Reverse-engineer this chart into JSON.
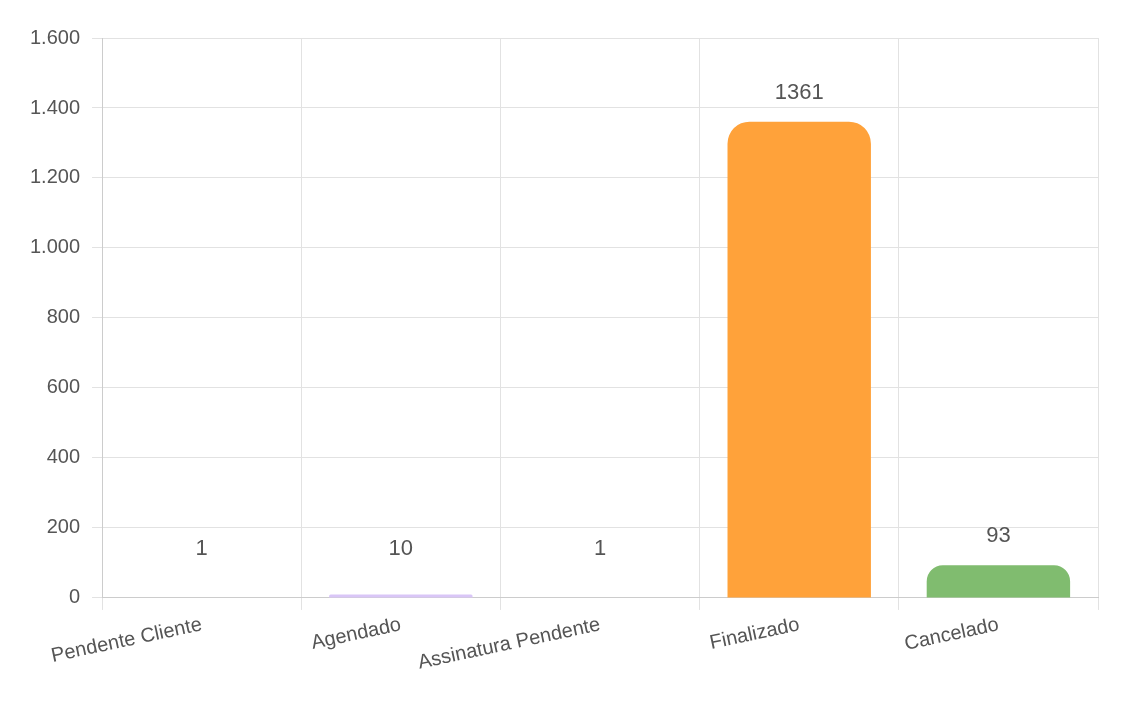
{
  "chart_data": {
    "type": "bar",
    "categories": [
      "Pendente Cliente",
      "Agendado",
      "Assinatura Pendente",
      "Finalizado",
      "Cancelado"
    ],
    "values": [
      1,
      10,
      1,
      1361,
      93
    ],
    "colors": [
      "#7fb3e0",
      "#d9c6f7",
      "#f29a9a",
      "#ffa23a",
      "#80bc6f"
    ],
    "ylim": [
      0,
      1600
    ],
    "yticks": [
      0,
      200,
      400,
      600,
      800,
      {
        "value": 1000,
        "label": "1.000"
      },
      {
        "value": 1200,
        "label": "1.200"
      },
      {
        "value": 1400,
        "label": "1.400"
      },
      {
        "value": 1600,
        "label": "1.600"
      }
    ],
    "grid": true,
    "data_labels": true
  }
}
